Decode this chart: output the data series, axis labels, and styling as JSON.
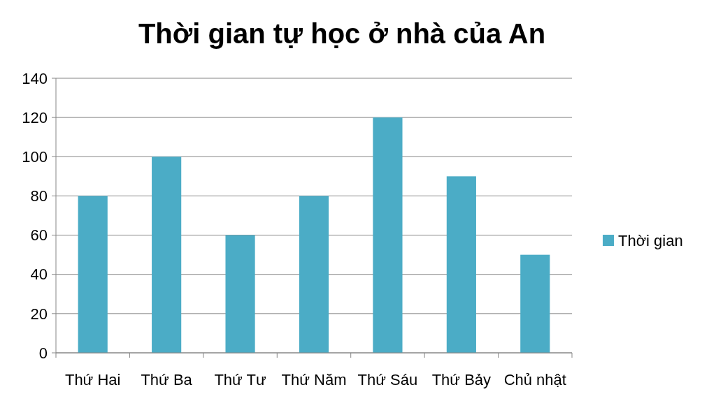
{
  "chart_data": {
    "type": "bar",
    "title": "Thời gian tự học ở nhà của An",
    "categories": [
      "Thứ Hai",
      "Thứ Ba",
      "Thứ Tư",
      "Thứ Năm",
      "Thứ Sáu",
      "Thứ Bảy",
      "Chủ nhật"
    ],
    "series": [
      {
        "name": "Thời gian",
        "color": "#4bacc6",
        "values": [
          80,
          100,
          60,
          80,
          120,
          90,
          50
        ]
      }
    ],
    "ylim": [
      0,
      140
    ],
    "yticks": [
      0,
      20,
      40,
      60,
      80,
      100,
      120,
      140
    ],
    "grid": "y",
    "legend": "right"
  }
}
